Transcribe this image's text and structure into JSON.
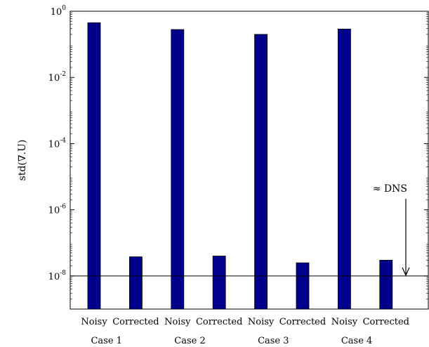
{
  "chart_data": {
    "type": "bar",
    "y_scale": "log",
    "ylim": [
      1e-09,
      1
    ],
    "yticks": [
      {
        "value": 1e-08,
        "base": "10",
        "exp": "-8"
      },
      {
        "value": 1e-06,
        "base": "10",
        "exp": "-6"
      },
      {
        "value": 0.0001,
        "base": "10",
        "exp": "-4"
      },
      {
        "value": 0.01,
        "base": "10",
        "exp": "-2"
      },
      {
        "value": 1,
        "base": "10",
        "exp": "0"
      }
    ],
    "ylabel": "std(∇.U)",
    "categories": [
      "Noisy",
      "Corrected",
      "Noisy",
      "Corrected",
      "Noisy",
      "Corrected",
      "Noisy",
      "Corrected"
    ],
    "groups": [
      "Case 1",
      "Case 2",
      "Case 3",
      "Case 4"
    ],
    "values": [
      0.45,
      3.8e-08,
      0.28,
      4e-08,
      0.2,
      2.5e-08,
      0.29,
      3e-08
    ],
    "bar_color": "#00008b",
    "reference_line": {
      "value": 1e-08
    },
    "annotation": {
      "text": "≈ DNS"
    }
  }
}
